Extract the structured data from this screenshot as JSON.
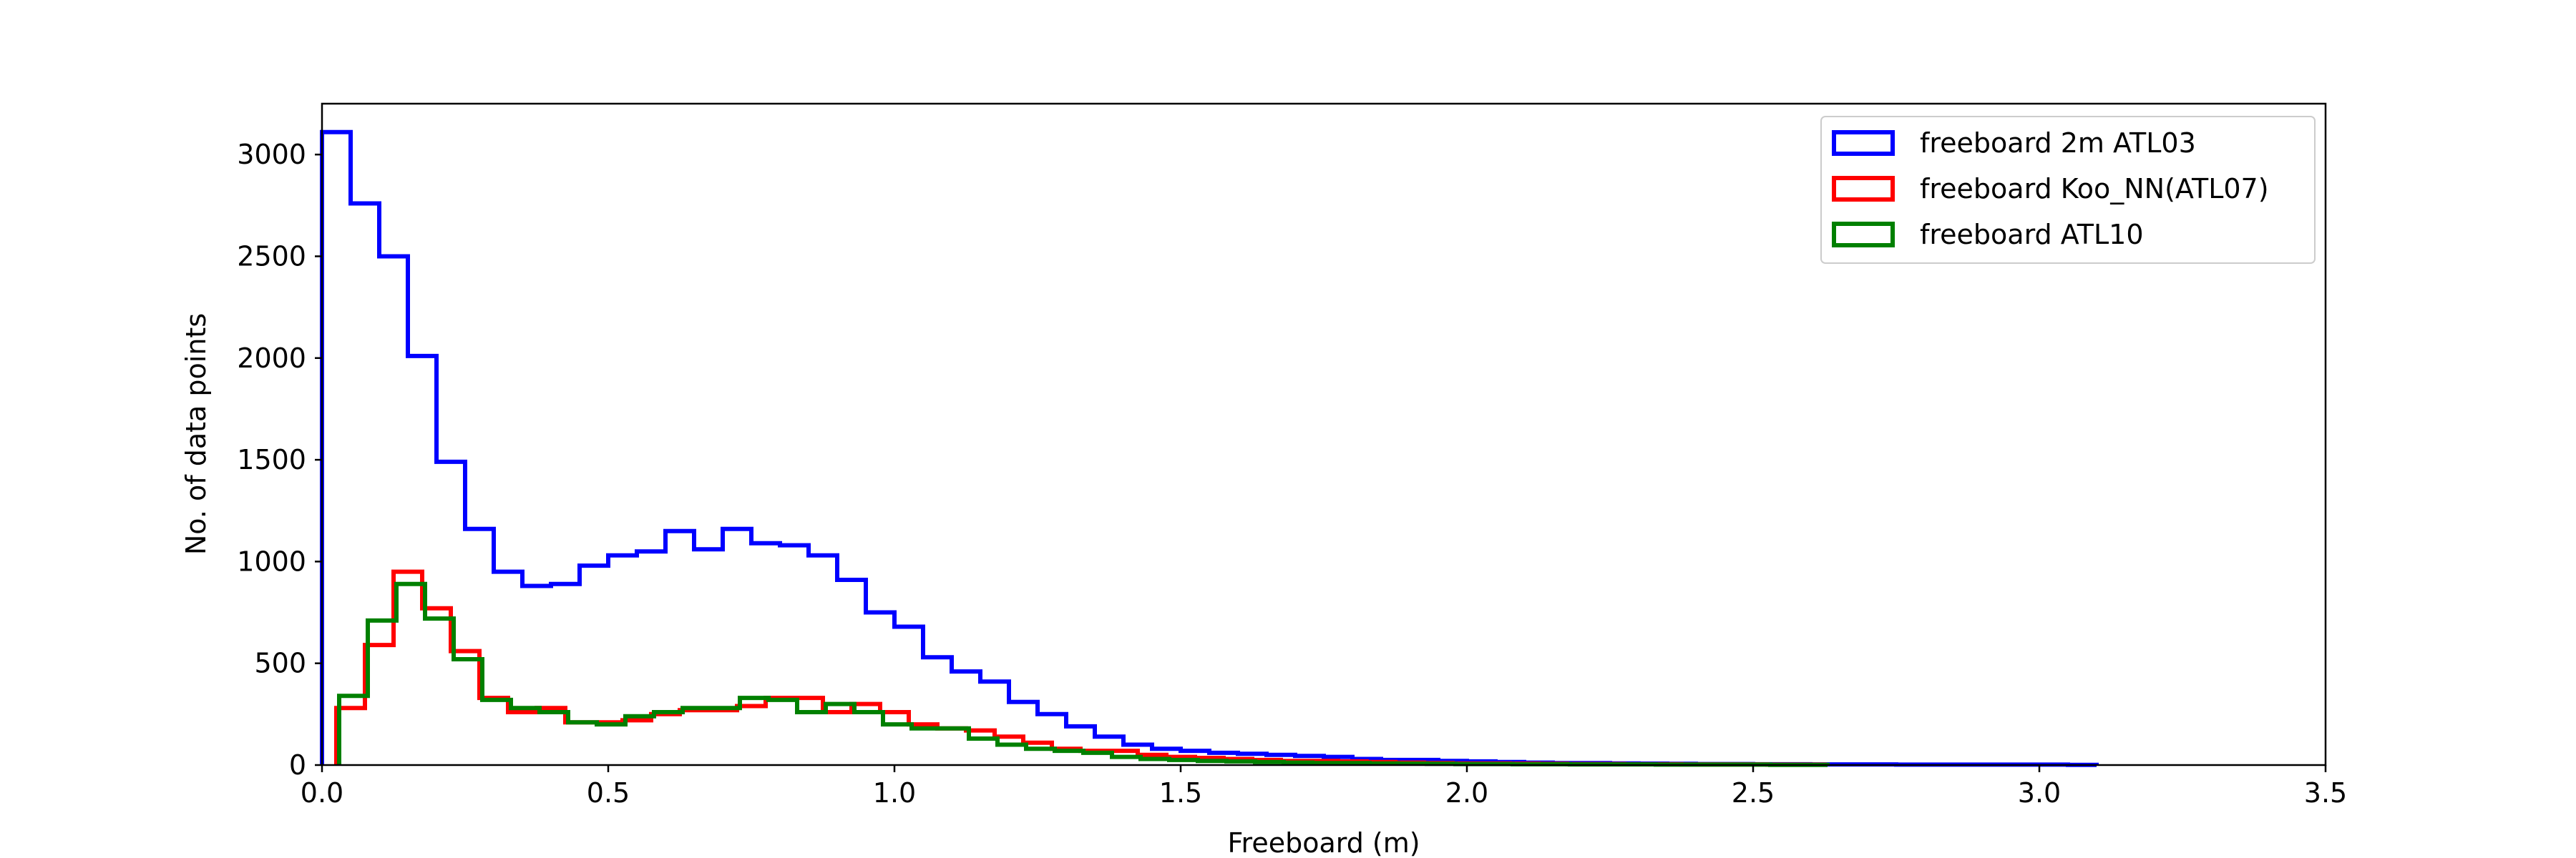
{
  "chart_data": {
    "type": "histogram",
    "xlabel": "Freeboard (m)",
    "ylabel": "No. of data points",
    "xlim": [
      0,
      3.5
    ],
    "ylim": [
      0,
      3250
    ],
    "x_ticks": [
      "0.0",
      "0.5",
      "1.0",
      "1.5",
      "2.0",
      "2.5",
      "3.0",
      "3.5"
    ],
    "y_ticks": [
      "0",
      "500",
      "1000",
      "1500",
      "2000",
      "2500",
      "3000"
    ],
    "grid": false,
    "legend_position": "top-right",
    "bin_width": 0.05,
    "series": [
      {
        "name": "freeboard 2m ATL03",
        "color": "#0000ff",
        "bin_start": 0.0,
        "values": [
          3110,
          2760,
          2500,
          2010,
          1490,
          1160,
          950,
          880,
          890,
          980,
          1030,
          1050,
          1150,
          1060,
          1160,
          1090,
          1080,
          1030,
          910,
          750,
          680,
          530,
          460,
          410,
          310,
          250,
          190,
          140,
          100,
          80,
          70,
          60,
          55,
          50,
          45,
          40,
          30,
          25,
          25,
          20,
          18,
          15,
          12,
          10,
          10,
          8,
          7,
          6,
          5,
          5,
          4,
          4,
          3,
          3,
          3,
          2,
          2,
          2,
          2,
          2,
          2,
          1
        ]
      },
      {
        "name": "freeboard Koo_NN(ATL07)",
        "color": "#ff0000",
        "bin_start": 0.025,
        "values": [
          280,
          590,
          950,
          770,
          560,
          330,
          260,
          280,
          210,
          210,
          220,
          250,
          270,
          270,
          290,
          330,
          330,
          260,
          300,
          260,
          200,
          180,
          170,
          140,
          110,
          80,
          70,
          70,
          50,
          40,
          35,
          30,
          25,
          20,
          20,
          18,
          15,
          12,
          10,
          8,
          8,
          7,
          6,
          5,
          5,
          4,
          4,
          3,
          3,
          3,
          2,
          2
        ]
      },
      {
        "name": "freeboard ATL10",
        "color": "#008000",
        "bin_start": 0.03,
        "values": [
          340,
          710,
          890,
          720,
          520,
          320,
          280,
          260,
          210,
          200,
          240,
          260,
          280,
          280,
          330,
          320,
          260,
          300,
          260,
          200,
          180,
          180,
          130,
          100,
          80,
          70,
          60,
          40,
          30,
          25,
          20,
          18,
          15,
          12,
          10,
          10,
          8,
          7,
          6,
          5,
          5,
          4,
          4,
          3,
          3,
          3,
          2,
          2,
          2,
          2,
          1,
          1
        ]
      }
    ]
  }
}
